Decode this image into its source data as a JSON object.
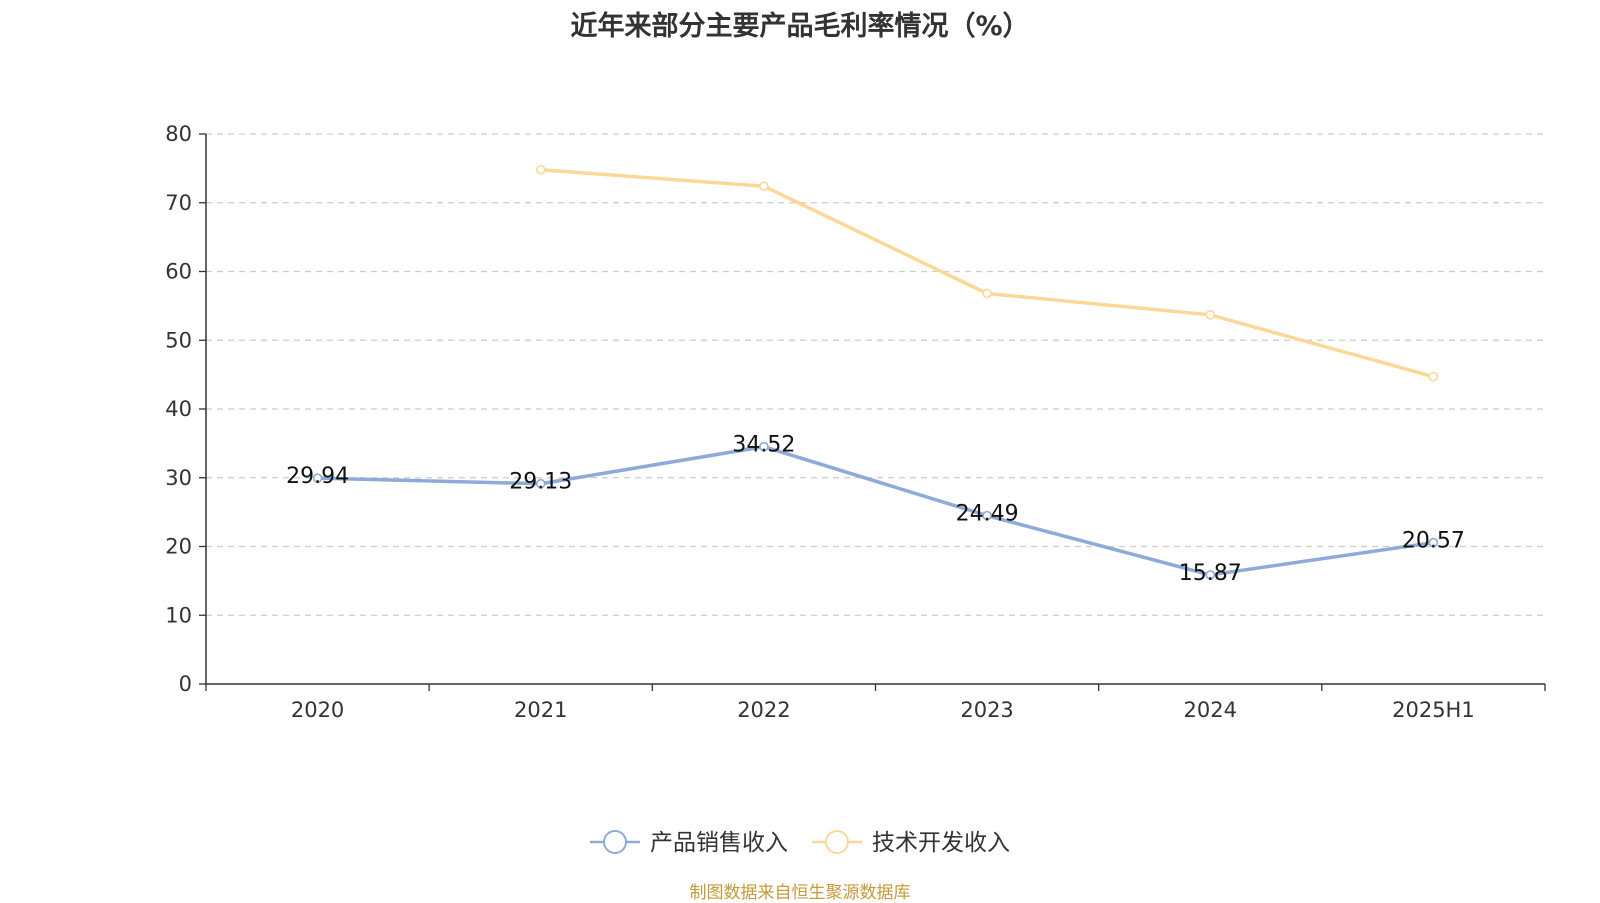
{
  "chart_data": {
    "type": "line",
    "title": "近年来部分主要产品毛利率情况（%）",
    "categories": [
      "2020",
      "2021",
      "2022",
      "2023",
      "2024",
      "2025H1"
    ],
    "series": [
      {
        "name": "产品销售收入",
        "color": "#8eaad8",
        "values": [
          29.94,
          29.13,
          34.52,
          24.49,
          15.87,
          20.57
        ],
        "data_labels": [
          "29.94",
          "29.13",
          "34.52",
          "24.49",
          "15.87",
          "20.57"
        ]
      },
      {
        "name": "技术开发收入",
        "color": "#fcd898",
        "values": [
          null,
          74.8,
          72.4,
          56.8,
          53.7,
          44.7
        ]
      }
    ],
    "ylim": [
      0,
      80
    ],
    "yticks": [
      "0",
      "10",
      "20",
      "30",
      "40",
      "50",
      "60",
      "70",
      "80"
    ],
    "grid": true,
    "legend": "bottom-center"
  },
  "footer": {
    "source": "制图数据来自恒生聚源数据库"
  }
}
